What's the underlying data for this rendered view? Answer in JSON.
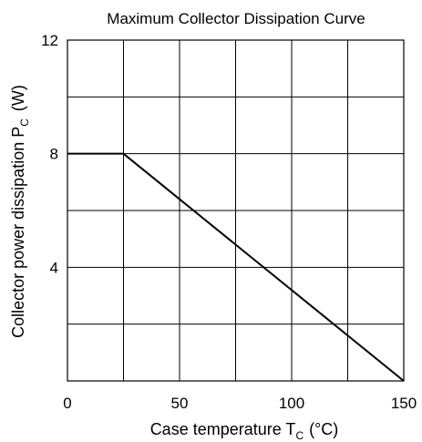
{
  "chart_data": {
    "type": "line",
    "title": "Maximum Collector Dissipation Curve",
    "xlabel": {
      "main": "Case temperature  T",
      "sub": "C",
      "unit": "(°C)"
    },
    "ylabel": {
      "main": "Collector power dissipation  P",
      "sub": "C",
      "unit": "(W)"
    },
    "xlim": [
      0,
      150
    ],
    "ylim": [
      0,
      12
    ],
    "xticks": [
      {
        "value": 0,
        "label": "0"
      },
      {
        "value": 50,
        "label": "50"
      },
      {
        "value": 100,
        "label": "100"
      },
      {
        "value": 150,
        "label": "150"
      }
    ],
    "yticks": [
      {
        "value": 4,
        "label": "4"
      },
      {
        "value": 8,
        "label": "8"
      },
      {
        "value": 12,
        "label": "12"
      }
    ],
    "grid": true,
    "grid_x_step": 25,
    "grid_y_step": 2,
    "series": [
      {
        "x": [
          0,
          25,
          150
        ],
        "y": [
          8,
          8,
          0
        ],
        "color": "#000000"
      }
    ]
  }
}
